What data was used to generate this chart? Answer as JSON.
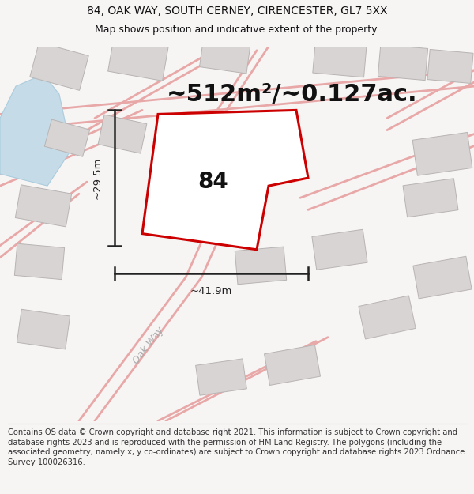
{
  "title_line1": "84, OAK WAY, SOUTH CERNEY, CIRENCESTER, GL7 5XX",
  "title_line2": "Map shows position and indicative extent of the property.",
  "area_text": "~512m²/~0.127ac.",
  "width_label": "~41.9m",
  "height_label": "~29.5m",
  "number_label": "84",
  "road_label": "Oak Way",
  "footer_text": "Contains OS data © Crown copyright and database right 2021. This information is subject to Crown copyright and database rights 2023 and is reproduced with the permission of HM Land Registry. The polygons (including the associated geometry, namely x, y co-ordinates) are subject to Crown copyright and database rights 2023 Ordnance Survey 100026316.",
  "bg_color": "#f7f4f4",
  "map_bg": "#f7f4f4",
  "plot_fill": "#ffffff",
  "plot_edge": "#cc0000",
  "road_color": "#e8a8a8",
  "building_color": "#d8d4d4",
  "water_color": "#c5dce8",
  "dim_color": "#222222",
  "title_fontsize": 10,
  "subtitle_fontsize": 9,
  "area_fontsize": 22,
  "number_fontsize": 20,
  "dim_label_fontsize": 9.5,
  "footer_fontsize": 7.2,
  "road_label_fontsize": 9
}
